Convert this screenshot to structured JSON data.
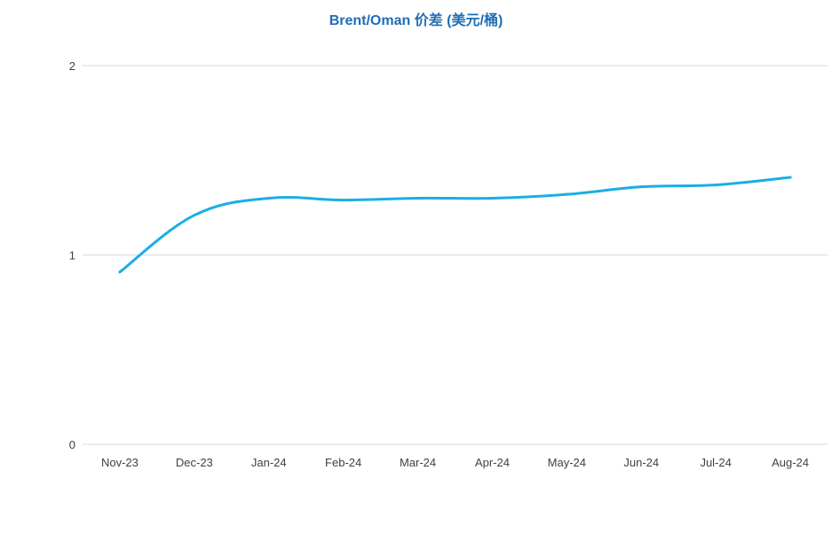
{
  "chart_data": {
    "type": "line",
    "title": "Brent/Oman 价差 (美元/桶)",
    "xlabel": "",
    "ylabel": "",
    "categories": [
      "Nov-23",
      "Dec-23",
      "Jan-24",
      "Feb-24",
      "Mar-24",
      "Apr-24",
      "May-24",
      "Jun-24",
      "Jul-24",
      "Aug-24"
    ],
    "ylim": [
      0,
      2
    ],
    "yticks": [
      0,
      1,
      2
    ],
    "grid": true,
    "legend": "none",
    "series": [
      {
        "values": [
          0.91,
          1.21,
          1.3,
          1.29,
          1.3,
          1.3,
          1.32,
          1.36,
          1.37,
          1.41
        ],
        "color": "#1aaee5"
      }
    ]
  }
}
